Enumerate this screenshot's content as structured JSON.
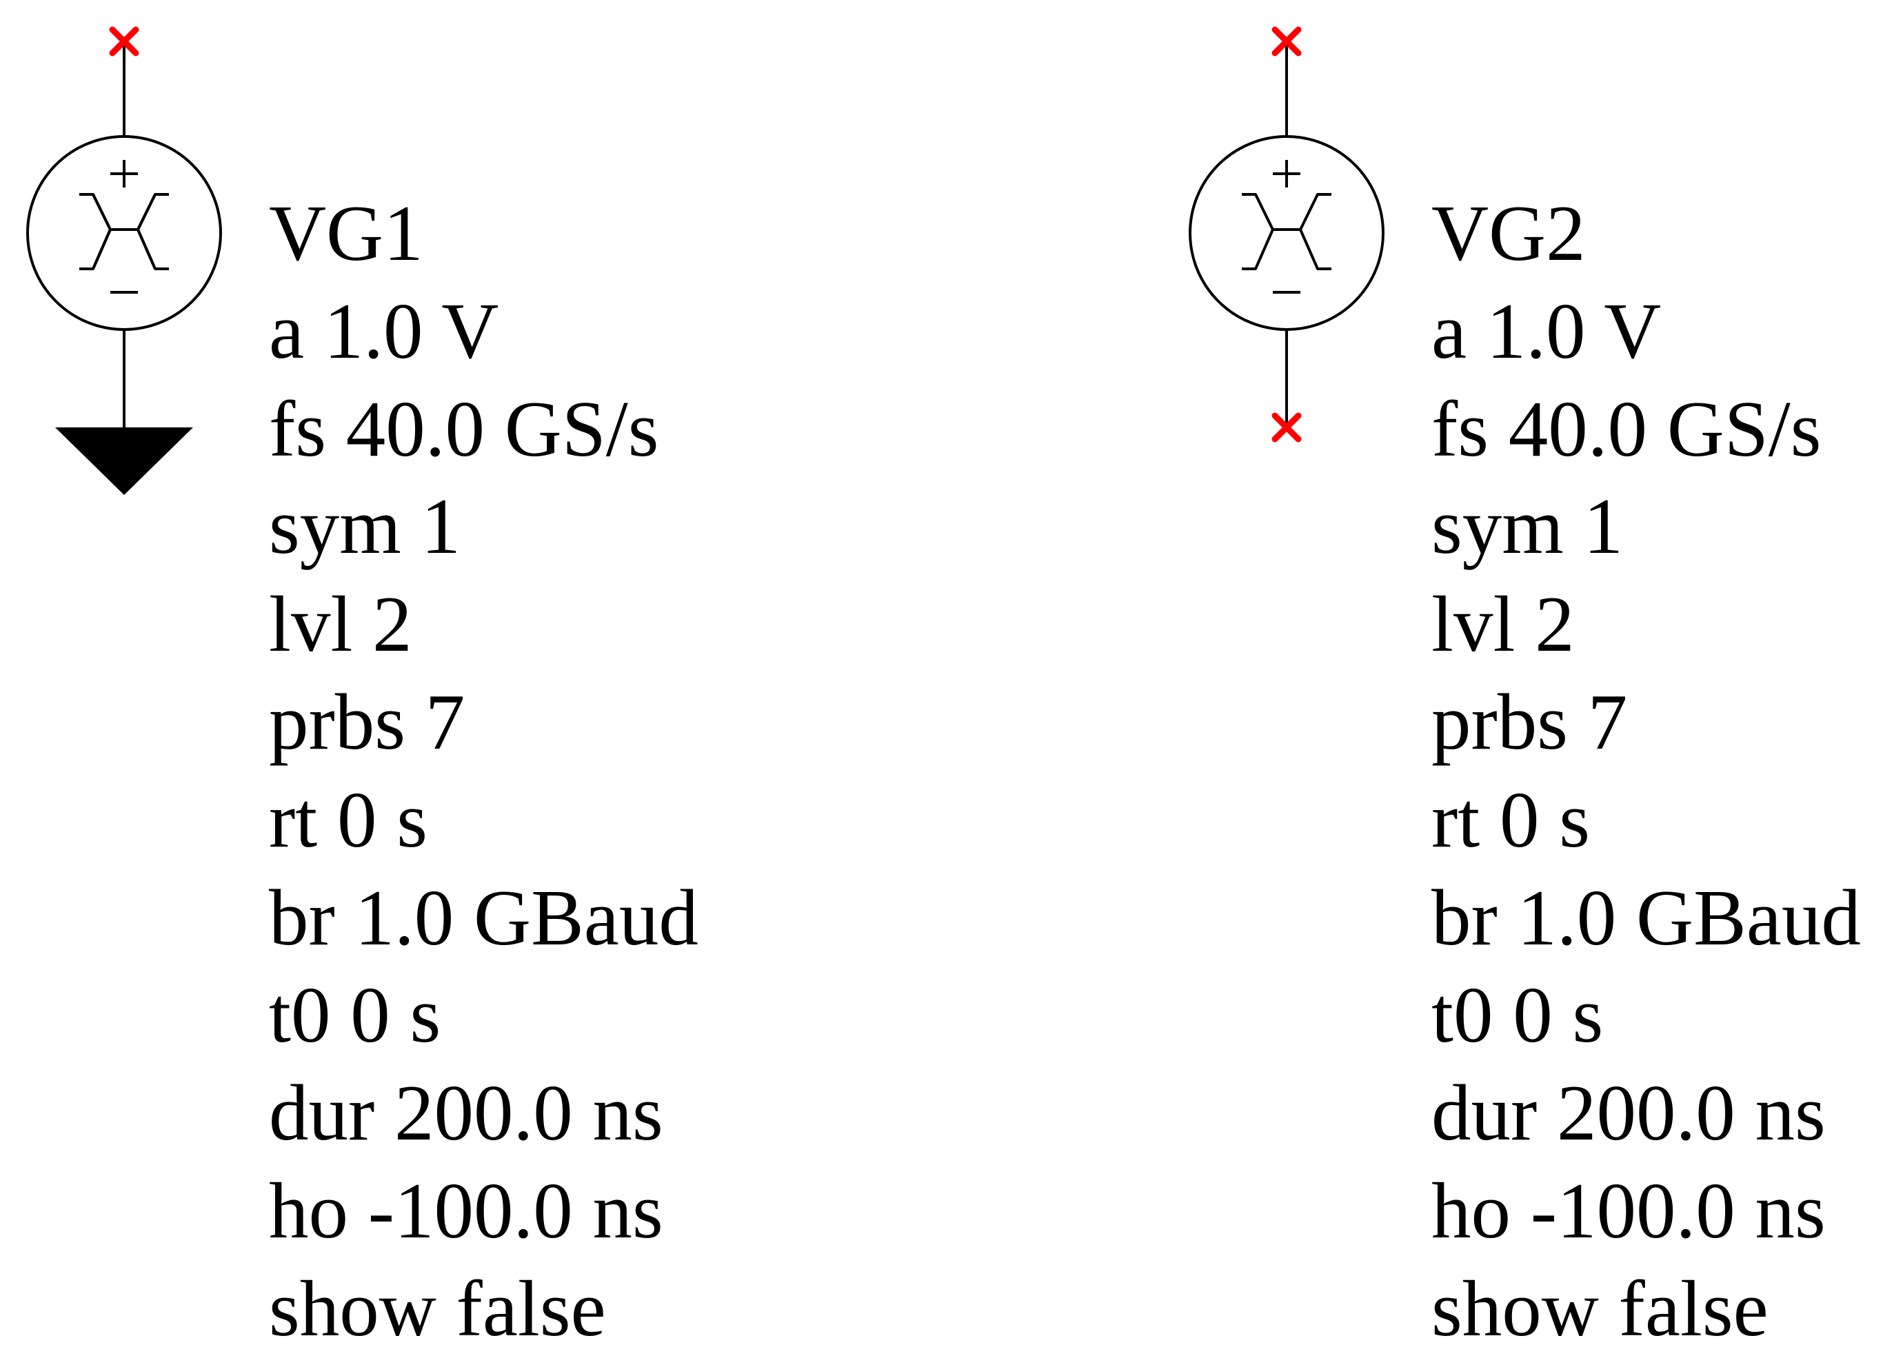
{
  "colors": {
    "wire": "#000000",
    "terminal_marker": "#ff0000",
    "ground": "#000000"
  },
  "components": [
    {
      "name": "VG1",
      "type": "voltage-generator-prbs",
      "params": [
        "a 1.0 V",
        "fs 40.0 GS/s",
        "sym 1",
        "lvl 2",
        "prbs 7",
        "rt 0 s",
        "br 1.0 GBaud",
        "t0 0 s",
        "dur 200.0 ns",
        "ho -100.0 ns",
        "show false"
      ],
      "top_terminal": "unconnected",
      "bottom_terminal": "ground"
    },
    {
      "name": "VG2",
      "type": "voltage-generator-prbs",
      "params": [
        "a 1.0 V",
        "fs 40.0 GS/s",
        "sym 1",
        "lvl 2",
        "prbs 7",
        "rt 0 s",
        "br 1.0 GBaud",
        "t0 0 s",
        "dur 200.0 ns",
        "ho -100.0 ns",
        "show false"
      ],
      "top_terminal": "unconnected",
      "bottom_terminal": "unconnected"
    }
  ],
  "icons": {
    "terminal": "unconnected-terminal-icon",
    "ground": "ground-icon",
    "source": "prbs-source-icon"
  }
}
